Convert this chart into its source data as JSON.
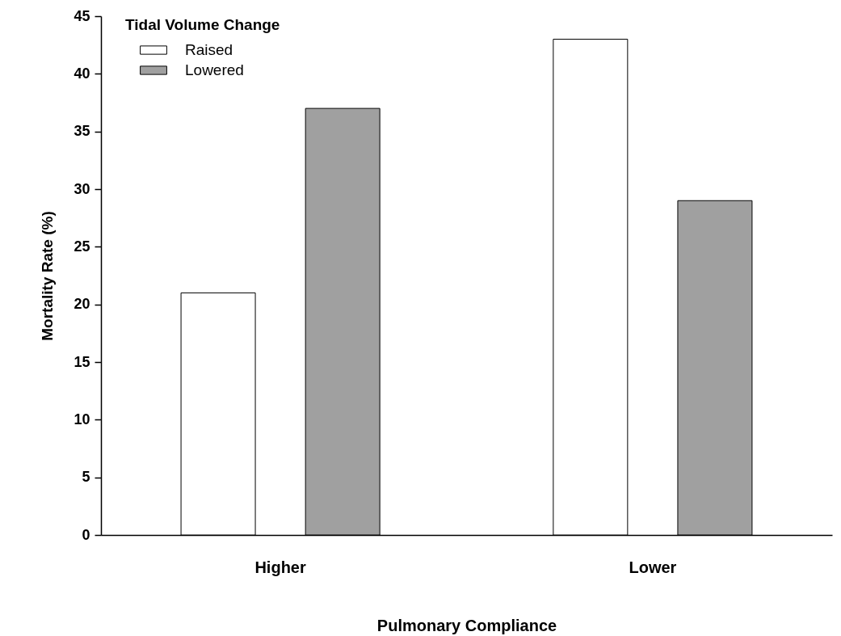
{
  "chart_data": {
    "type": "bar",
    "xlabel": "Pulmonary Compliance",
    "ylabel": "Mortality Rate (%)",
    "legend_title": "Tidal Volume Change",
    "legend": "top left",
    "categories": [
      "Higher",
      "Lower"
    ],
    "series": [
      {
        "name": "Raised",
        "color": "#ffffff",
        "values": [
          21,
          43
        ]
      },
      {
        "name": "Lowered",
        "color": "#a0a0a0",
        "values": [
          37,
          29
        ]
      }
    ],
    "ylim": [
      0,
      45
    ],
    "yticks": [
      0,
      5,
      10,
      15,
      20,
      25,
      30,
      35,
      40,
      45
    ]
  }
}
